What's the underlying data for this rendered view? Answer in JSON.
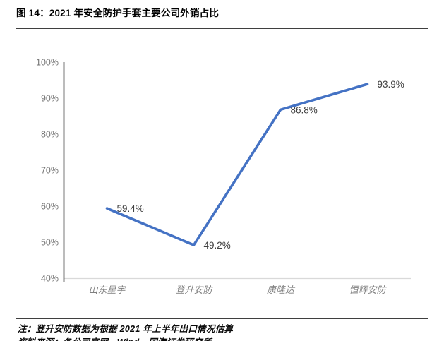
{
  "page": {
    "title": "图 14：2021 年安全防护手套主要公司外销占比",
    "note": "注：登升安防数据为根据 2021 年上半年出口情况估算",
    "source": "资料来源：各公司官网，Wind，国海证券研究所"
  },
  "chart_data": {
    "type": "line",
    "title": "2021 年安全防护手套主要公司外销占比",
    "categories": [
      "山东星宇",
      "登升安防",
      "康隆达",
      "恒辉安防"
    ],
    "values": [
      59.4,
      49.2,
      86.8,
      93.9
    ],
    "data_labels": [
      "59.4%",
      "49.2%",
      "86.8%",
      "93.9%"
    ],
    "xlabel": "",
    "ylabel": "",
    "ylim": [
      40,
      100
    ],
    "ytick_step": 10,
    "ytick_labels": [
      "40%",
      "50%",
      "60%",
      "70%",
      "80%",
      "90%",
      "100%"
    ],
    "grid": false,
    "legend": "none",
    "colors": {
      "line": "#4472C4",
      "axis": "#595959",
      "baseline": "#D9D9D9",
      "tick_label": "#737373",
      "data_label": "#404040",
      "category_label": "#7F7F7F"
    }
  }
}
